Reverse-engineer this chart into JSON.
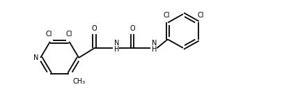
{
  "bg_color": "#ffffff",
  "line_color": "#000000",
  "figsize": [
    4.06,
    1.58
  ],
  "dpi": 100,
  "lw": 1.3,
  "fs": 7.0,
  "xlim": [
    0,
    10
  ],
  "ylim": [
    0,
    4
  ]
}
